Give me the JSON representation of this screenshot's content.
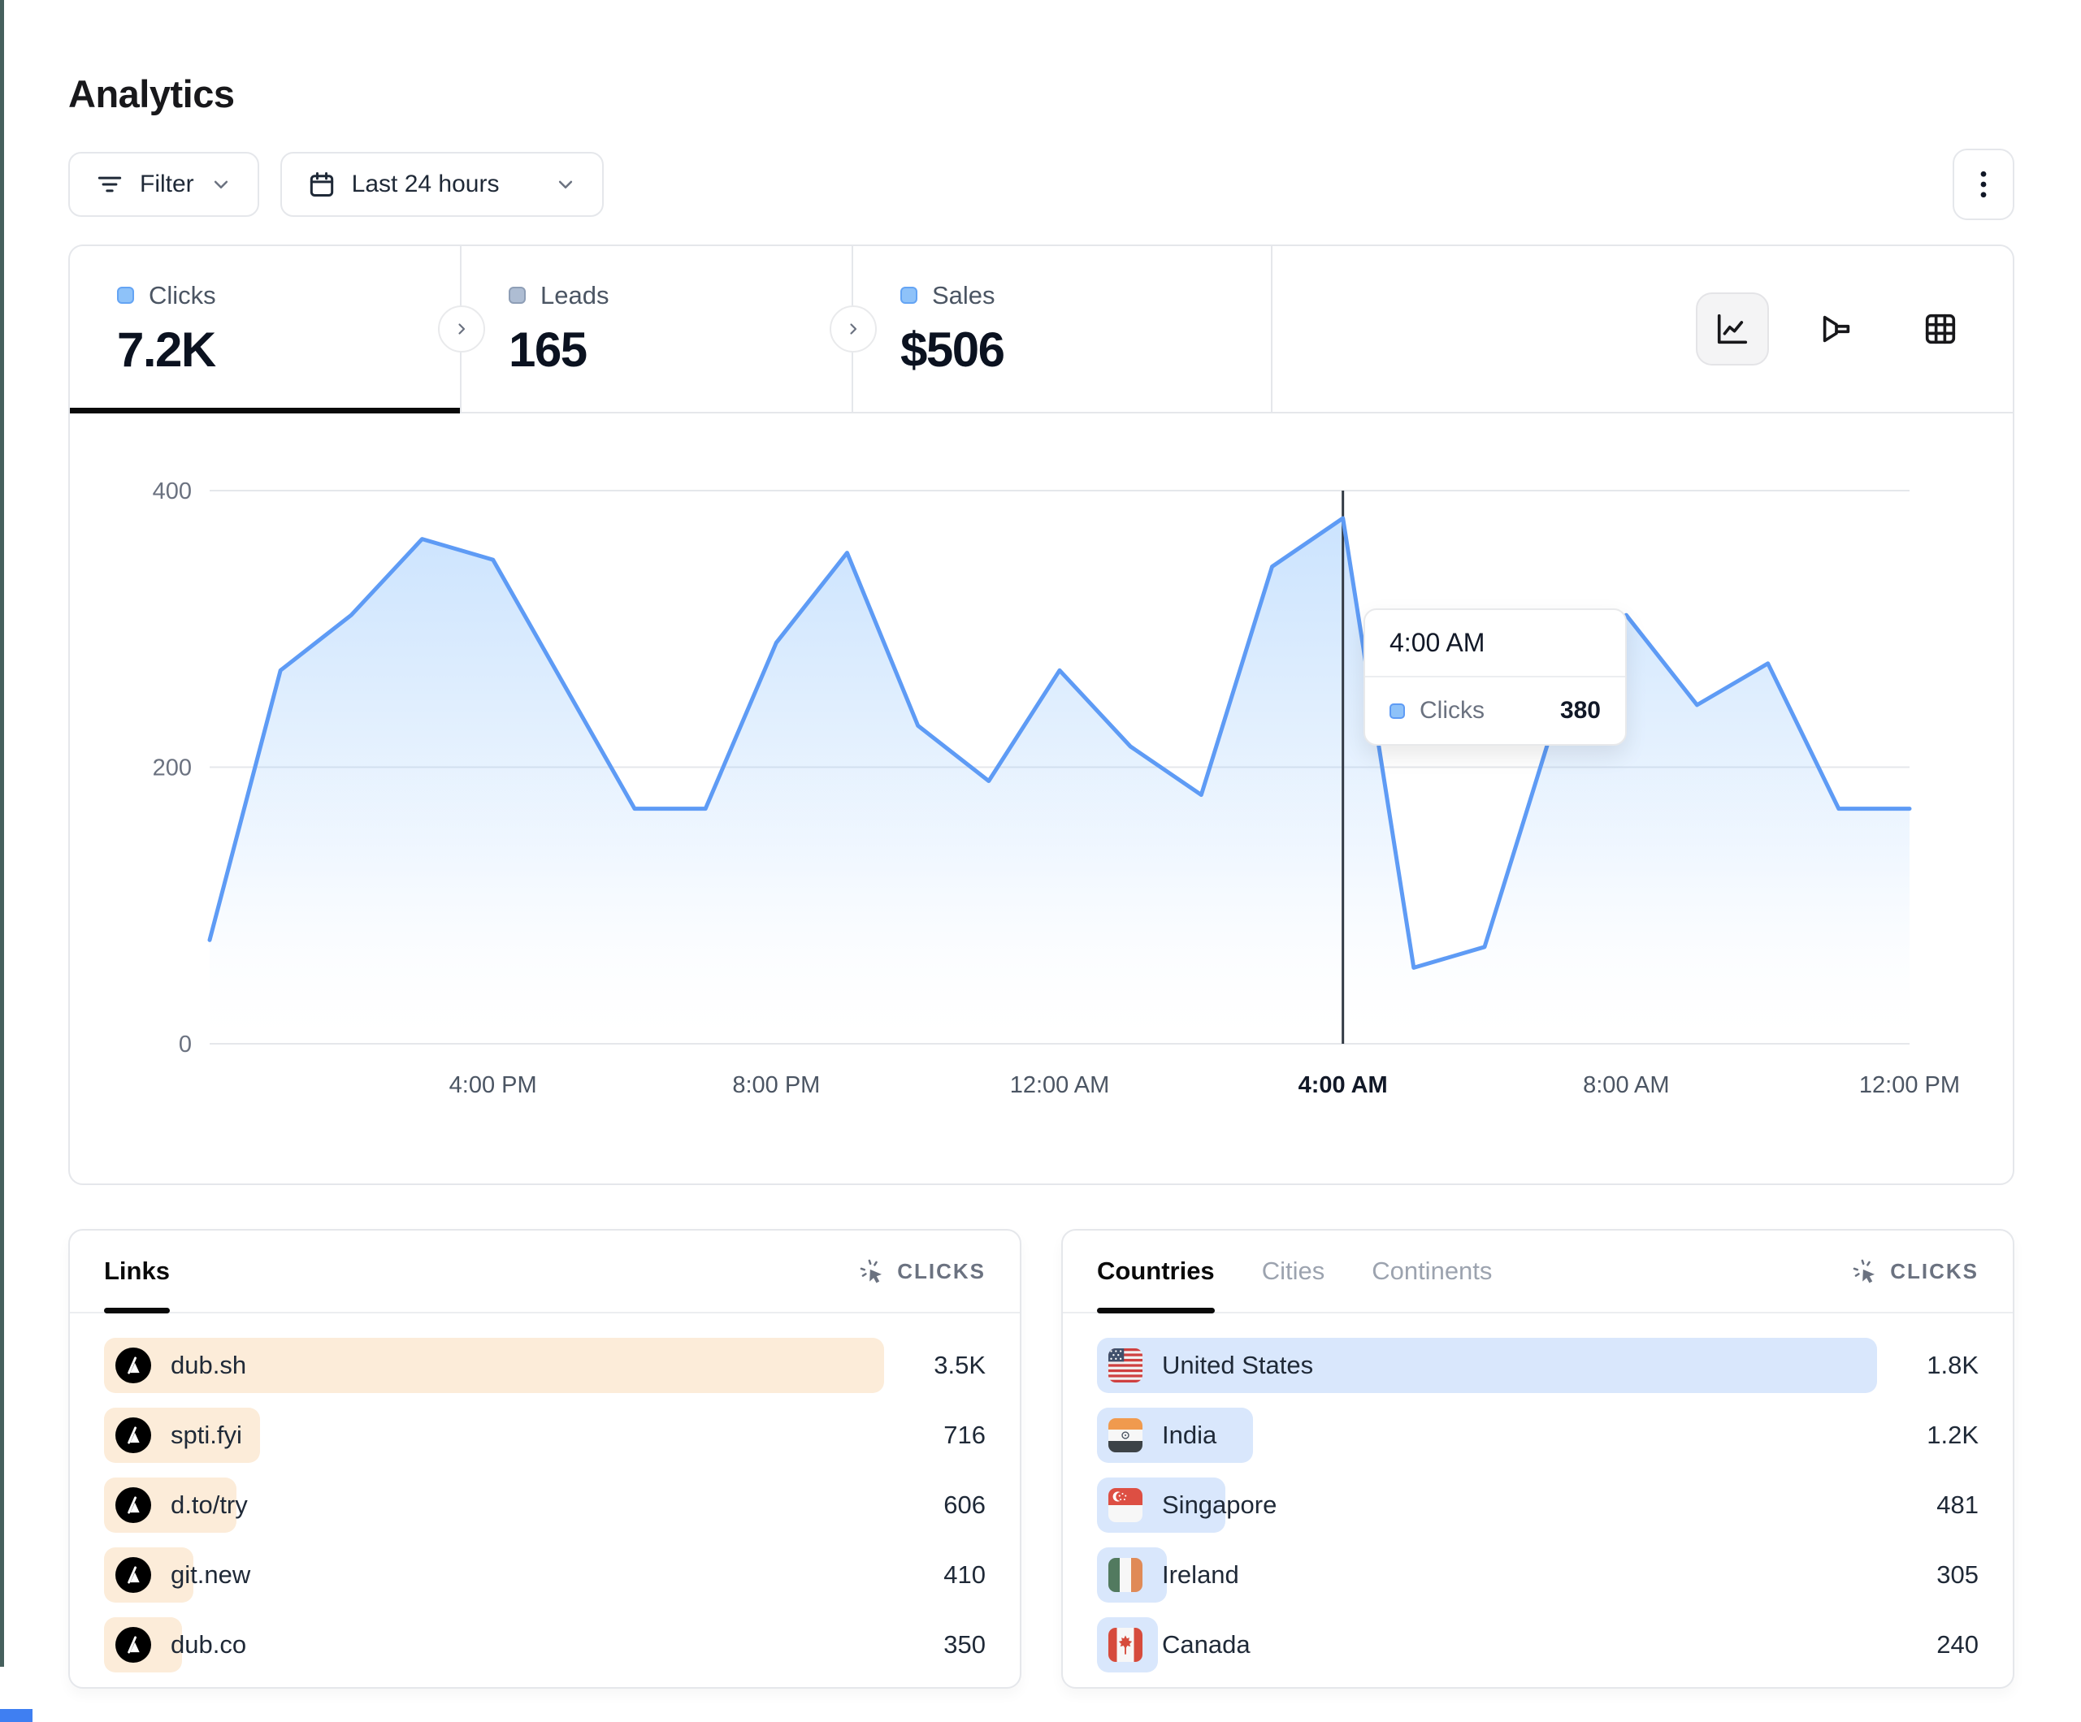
{
  "header": {
    "title": "Analytics"
  },
  "toolbar": {
    "filter_label": "Filter",
    "date_range_label": "Last 24 hours",
    "kebab_menu": "more-options"
  },
  "stats": {
    "items": [
      {
        "label": "Clicks",
        "value": "7.2K",
        "marker_color": "#8ec2f9",
        "marker_border": "#64a4f4",
        "active": true
      },
      {
        "label": "Leads",
        "value": "165",
        "marker_color": "#aebdd3",
        "marker_border": "#8e9eb6",
        "active": false
      },
      {
        "label": "Sales",
        "value": "$506",
        "marker_color": "#8ec2f9",
        "marker_border": "#64a4f4",
        "active": false
      }
    ],
    "view_toggles": [
      "line-chart-icon",
      "funnel-chart-icon",
      "table-grid-icon"
    ],
    "active_toggle": 0
  },
  "chart_data": {
    "type": "area",
    "series_name": "Clicks",
    "x": [
      "12:00 PM",
      "1:00 PM",
      "2:00 PM",
      "3:00 PM",
      "4:00 PM",
      "5:00 PM",
      "6:00 PM",
      "7:00 PM",
      "8:00 PM",
      "9:00 PM",
      "10:00 PM",
      "11:00 PM",
      "12:00 AM",
      "1:00 AM",
      "2:00 AM",
      "3:00 AM",
      "4:00 AM",
      "5:00 AM",
      "6:00 AM",
      "7:00 AM",
      "8:00 AM",
      "9:00 AM",
      "10:00 AM",
      "11:00 AM",
      "12:00 PM"
    ],
    "values": [
      75,
      270,
      310,
      365,
      350,
      260,
      170,
      170,
      290,
      355,
      230,
      190,
      270,
      215,
      180,
      345,
      380,
      55,
      70,
      235,
      310,
      245,
      275,
      170,
      170
    ],
    "x_tick_labels": [
      "4:00 PM",
      "8:00 PM",
      "12:00 AM",
      "4:00 AM",
      "8:00 AM",
      "12:00 PM"
    ],
    "x_tick_indices": [
      4,
      8,
      12,
      16,
      20,
      24
    ],
    "highlighted_tick": "4:00 AM",
    "y_ticks": [
      0,
      200,
      400
    ],
    "ylim": [
      0,
      400
    ],
    "grid": true,
    "legend_position": "none",
    "line_color": "#5e9bf5",
    "fill_top_color": "#93c5fd",
    "crosshair_index": 16,
    "crosshair_color": "#333b45"
  },
  "tooltip": {
    "time": "4:00 AM",
    "series": "Clicks",
    "value": "380"
  },
  "panels": [
    {
      "id": "links",
      "tabs": [
        {
          "label": "Links",
          "active": true
        }
      ],
      "metric_label": "CLICKS",
      "metric_icon": "cursor-click-icon",
      "bar_color": "#fcecd9",
      "rows": [
        {
          "icon": "dub-logo-icon",
          "label": "dub.sh",
          "value": "3.5K",
          "bar_pct": 100
        },
        {
          "icon": "dub-logo-icon",
          "label": "spti.fyi",
          "value": "716",
          "bar_pct": 20
        },
        {
          "icon": "dub-logo-icon",
          "label": "d.to/try",
          "value": "606",
          "bar_pct": 17
        },
        {
          "icon": "dub-logo-icon",
          "label": "git.new",
          "value": "410",
          "bar_pct": 11.5
        },
        {
          "icon": "dub-logo-icon",
          "label": "dub.co",
          "value": "350",
          "bar_pct": 10
        }
      ]
    },
    {
      "id": "countries",
      "tabs": [
        {
          "label": "Countries",
          "active": true
        },
        {
          "label": "Cities",
          "active": false
        },
        {
          "label": "Continents",
          "active": false
        }
      ],
      "metric_label": "CLICKS",
      "metric_icon": "cursor-click-icon",
      "bar_color": "#d9e7fc",
      "rows": [
        {
          "icon": "us-flag-icon",
          "label": "United States",
          "value": "1.8K",
          "bar_pct": 100
        },
        {
          "icon": "india-flag-icon",
          "label": "India",
          "value": "1.2K",
          "bar_pct": 20
        },
        {
          "icon": "singapore-flag-icon",
          "label": "Singapore",
          "value": "481",
          "bar_pct": 16.5
        },
        {
          "icon": "ireland-flag-icon",
          "label": "Ireland",
          "value": "305",
          "bar_pct": 9
        },
        {
          "icon": "canada-flag-icon",
          "label": "Canada",
          "value": "240",
          "bar_pct": 7.8
        }
      ]
    }
  ]
}
